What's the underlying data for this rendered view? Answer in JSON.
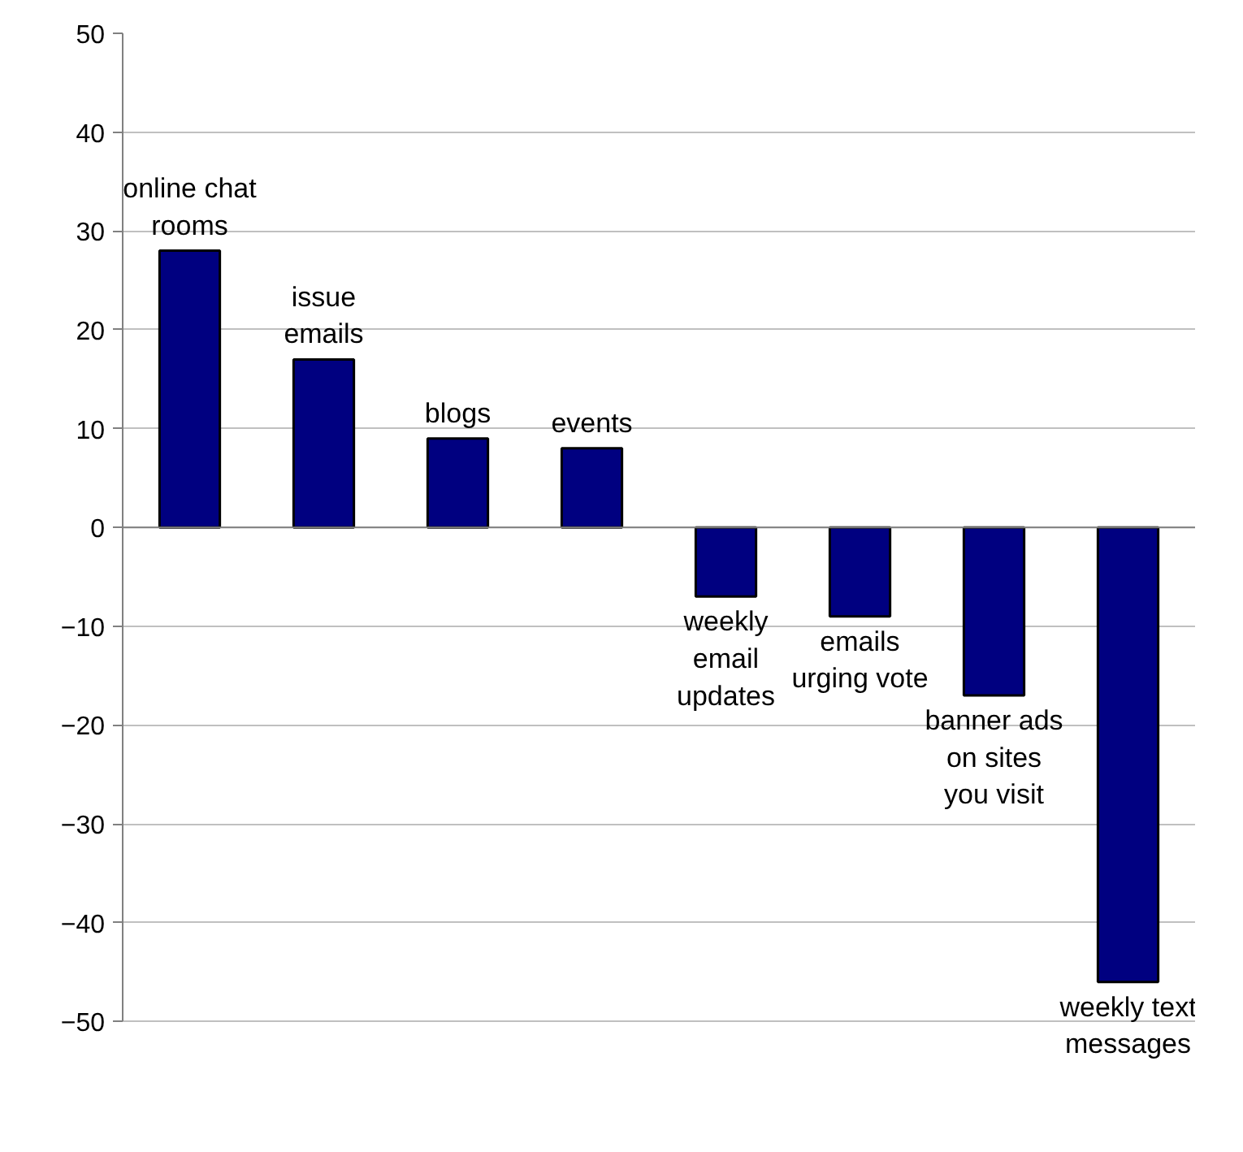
{
  "chart_data": {
    "type": "bar",
    "categories": [
      "online chat rooms",
      "issue emails",
      "blogs",
      "events",
      "weekly email updates",
      "emails urging vote",
      "banner ads on sites you visit",
      "weekly text messages"
    ],
    "values": [
      28,
      17,
      9,
      8,
      -7,
      -9,
      -17,
      -46
    ],
    "color": "#000080",
    "ylim": [
      -50,
      50
    ],
    "yticks": [
      -50,
      -40,
      -30,
      -20,
      -10,
      0,
      10,
      20,
      30,
      40,
      50
    ],
    "grid": "y"
  }
}
